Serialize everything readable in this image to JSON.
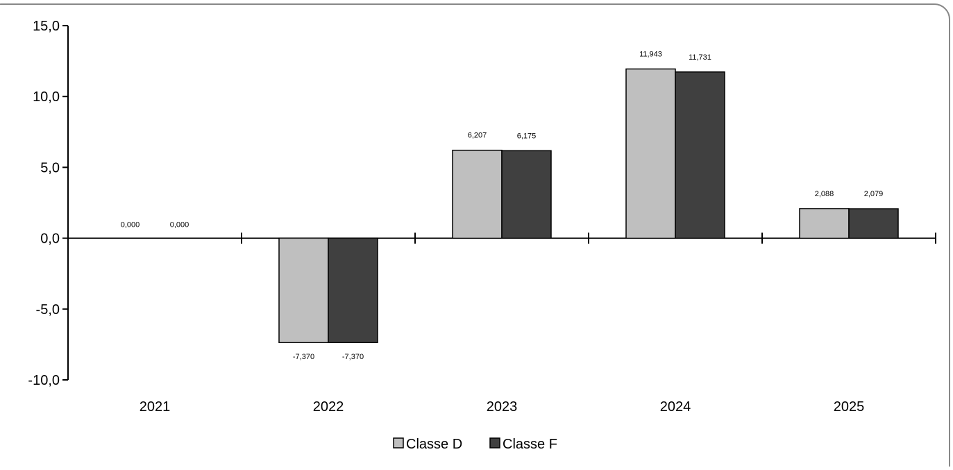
{
  "chart_data": {
    "type": "bar",
    "categories": [
      "2021",
      "2022",
      "2023",
      "2024",
      "2025"
    ],
    "series": [
      {
        "name": "Classe D",
        "color": "#bfbfbf",
        "values": [
          0.0,
          -7.37,
          6.207,
          11.943,
          2.088
        ],
        "labels": [
          "0,000",
          "-7,370",
          "6,207",
          "11,943",
          "2,088"
        ]
      },
      {
        "name": "Classe F",
        "color": "#404040",
        "values": [
          0.0,
          -7.37,
          6.175,
          11.731,
          2.079
        ],
        "labels": [
          "0,000",
          "-7,370",
          "6,175",
          "11,731",
          "2,079"
        ]
      }
    ],
    "yticks": [
      15,
      10,
      5,
      0,
      -5,
      -10
    ],
    "ytick_labels": [
      "15,0",
      "10,0",
      "5,0",
      "0,0",
      "-5,0",
      "-10,0"
    ],
    "ylim": [
      -10,
      15
    ],
    "title": "",
    "xlabel": "",
    "ylabel": "",
    "grid": false,
    "legend": "bottom-center"
  }
}
